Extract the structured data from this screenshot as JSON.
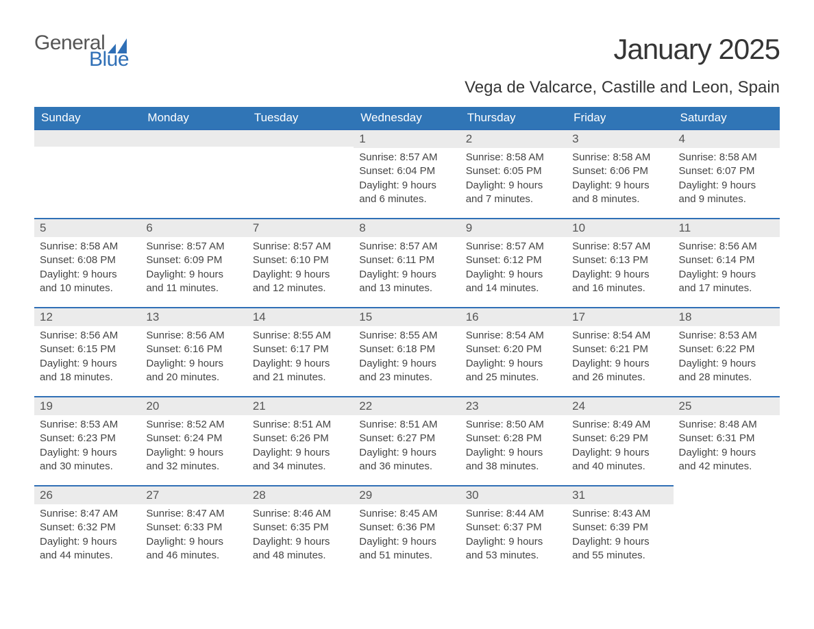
{
  "logo": {
    "word1": "General",
    "word2": "Blue",
    "accent_color": "#2f6fb6"
  },
  "title": "January 2025",
  "location": "Vega de Valcarce, Castille and Leon, Spain",
  "colors": {
    "header_bg": "#3075b6",
    "header_text": "#ffffff",
    "daynum_bg": "#ebebeb",
    "cell_border_top": "#2f6fb6",
    "body_text": "#444444",
    "title_text": "#353535"
  },
  "typography": {
    "title_fontsize": 42,
    "location_fontsize": 24,
    "header_fontsize": 17,
    "daynum_fontsize": 17,
    "content_fontsize": 15
  },
  "day_names": [
    "Sunday",
    "Monday",
    "Tuesday",
    "Wednesday",
    "Thursday",
    "Friday",
    "Saturday"
  ],
  "labels": {
    "sunrise": "Sunrise: ",
    "sunset": "Sunset: ",
    "daylight": "Daylight: "
  },
  "weeks": [
    [
      null,
      null,
      null,
      {
        "n": "1",
        "sunrise": "8:57 AM",
        "sunset": "6:04 PM",
        "daylight": "9 hours and 6 minutes."
      },
      {
        "n": "2",
        "sunrise": "8:58 AM",
        "sunset": "6:05 PM",
        "daylight": "9 hours and 7 minutes."
      },
      {
        "n": "3",
        "sunrise": "8:58 AM",
        "sunset": "6:06 PM",
        "daylight": "9 hours and 8 minutes."
      },
      {
        "n": "4",
        "sunrise": "8:58 AM",
        "sunset": "6:07 PM",
        "daylight": "9 hours and 9 minutes."
      }
    ],
    [
      {
        "n": "5",
        "sunrise": "8:58 AM",
        "sunset": "6:08 PM",
        "daylight": "9 hours and 10 minutes."
      },
      {
        "n": "6",
        "sunrise": "8:57 AM",
        "sunset": "6:09 PM",
        "daylight": "9 hours and 11 minutes."
      },
      {
        "n": "7",
        "sunrise": "8:57 AM",
        "sunset": "6:10 PM",
        "daylight": "9 hours and 12 minutes."
      },
      {
        "n": "8",
        "sunrise": "8:57 AM",
        "sunset": "6:11 PM",
        "daylight": "9 hours and 13 minutes."
      },
      {
        "n": "9",
        "sunrise": "8:57 AM",
        "sunset": "6:12 PM",
        "daylight": "9 hours and 14 minutes."
      },
      {
        "n": "10",
        "sunrise": "8:57 AM",
        "sunset": "6:13 PM",
        "daylight": "9 hours and 16 minutes."
      },
      {
        "n": "11",
        "sunrise": "8:56 AM",
        "sunset": "6:14 PM",
        "daylight": "9 hours and 17 minutes."
      }
    ],
    [
      {
        "n": "12",
        "sunrise": "8:56 AM",
        "sunset": "6:15 PM",
        "daylight": "9 hours and 18 minutes."
      },
      {
        "n": "13",
        "sunrise": "8:56 AM",
        "sunset": "6:16 PM",
        "daylight": "9 hours and 20 minutes."
      },
      {
        "n": "14",
        "sunrise": "8:55 AM",
        "sunset": "6:17 PM",
        "daylight": "9 hours and 21 minutes."
      },
      {
        "n": "15",
        "sunrise": "8:55 AM",
        "sunset": "6:18 PM",
        "daylight": "9 hours and 23 minutes."
      },
      {
        "n": "16",
        "sunrise": "8:54 AM",
        "sunset": "6:20 PM",
        "daylight": "9 hours and 25 minutes."
      },
      {
        "n": "17",
        "sunrise": "8:54 AM",
        "sunset": "6:21 PM",
        "daylight": "9 hours and 26 minutes."
      },
      {
        "n": "18",
        "sunrise": "8:53 AM",
        "sunset": "6:22 PM",
        "daylight": "9 hours and 28 minutes."
      }
    ],
    [
      {
        "n": "19",
        "sunrise": "8:53 AM",
        "sunset": "6:23 PM",
        "daylight": "9 hours and 30 minutes."
      },
      {
        "n": "20",
        "sunrise": "8:52 AM",
        "sunset": "6:24 PM",
        "daylight": "9 hours and 32 minutes."
      },
      {
        "n": "21",
        "sunrise": "8:51 AM",
        "sunset": "6:26 PM",
        "daylight": "9 hours and 34 minutes."
      },
      {
        "n": "22",
        "sunrise": "8:51 AM",
        "sunset": "6:27 PM",
        "daylight": "9 hours and 36 minutes."
      },
      {
        "n": "23",
        "sunrise": "8:50 AM",
        "sunset": "6:28 PM",
        "daylight": "9 hours and 38 minutes."
      },
      {
        "n": "24",
        "sunrise": "8:49 AM",
        "sunset": "6:29 PM",
        "daylight": "9 hours and 40 minutes."
      },
      {
        "n": "25",
        "sunrise": "8:48 AM",
        "sunset": "6:31 PM",
        "daylight": "9 hours and 42 minutes."
      }
    ],
    [
      {
        "n": "26",
        "sunrise": "8:47 AM",
        "sunset": "6:32 PM",
        "daylight": "9 hours and 44 minutes."
      },
      {
        "n": "27",
        "sunrise": "8:47 AM",
        "sunset": "6:33 PM",
        "daylight": "9 hours and 46 minutes."
      },
      {
        "n": "28",
        "sunrise": "8:46 AM",
        "sunset": "6:35 PM",
        "daylight": "9 hours and 48 minutes."
      },
      {
        "n": "29",
        "sunrise": "8:45 AM",
        "sunset": "6:36 PM",
        "daylight": "9 hours and 51 minutes."
      },
      {
        "n": "30",
        "sunrise": "8:44 AM",
        "sunset": "6:37 PM",
        "daylight": "9 hours and 53 minutes."
      },
      {
        "n": "31",
        "sunrise": "8:43 AM",
        "sunset": "6:39 PM",
        "daylight": "9 hours and 55 minutes."
      },
      null
    ]
  ]
}
